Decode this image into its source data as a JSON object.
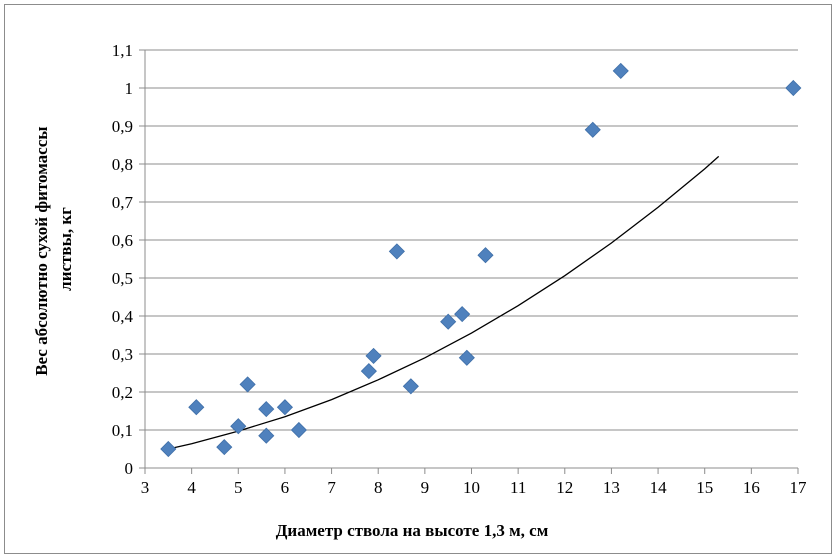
{
  "chart_data": {
    "type": "scatter",
    "xlabel": "Диаметр ствола на высоте 1,3 м, см",
    "ylabel_lines": [
      "Вес абсолютно сухой фитомассы",
      "листвы, кг"
    ],
    "xlim": [
      3,
      17
    ],
    "ylim": [
      0,
      1.1
    ],
    "x_ticks": [
      3,
      4,
      5,
      6,
      7,
      8,
      9,
      10,
      11,
      12,
      13,
      14,
      15,
      16,
      17
    ],
    "x_tick_labels": [
      "3",
      "4",
      "5",
      "6",
      "7",
      "8",
      "9",
      "10",
      "11",
      "12",
      "13",
      "14",
      "15",
      "16",
      "17"
    ],
    "y_ticks": [
      0,
      0.1,
      0.2,
      0.3,
      0.4,
      0.5,
      0.6,
      0.7,
      0.8,
      0.9,
      1,
      1.1
    ],
    "y_tick_labels": [
      "0",
      "0,1",
      "0,2",
      "0,3",
      "0,4",
      "0,5",
      "0,6",
      "0,7",
      "0,8",
      "0,9",
      "1",
      "1,1"
    ],
    "grid": "horizontal",
    "marker_color": "#4f81bd",
    "points": [
      {
        "x": 3.5,
        "y": 0.05
      },
      {
        "x": 4.1,
        "y": 0.16
      },
      {
        "x": 4.7,
        "y": 0.055
      },
      {
        "x": 5.0,
        "y": 0.11
      },
      {
        "x": 5.2,
        "y": 0.22
      },
      {
        "x": 5.6,
        "y": 0.155
      },
      {
        "x": 5.6,
        "y": 0.085
      },
      {
        "x": 6.0,
        "y": 0.16
      },
      {
        "x": 6.3,
        "y": 0.1
      },
      {
        "x": 7.8,
        "y": 0.255
      },
      {
        "x": 7.9,
        "y": 0.295
      },
      {
        "x": 8.4,
        "y": 0.57
      },
      {
        "x": 8.7,
        "y": 0.215
      },
      {
        "x": 9.5,
        "y": 0.385
      },
      {
        "x": 9.8,
        "y": 0.405
      },
      {
        "x": 9.9,
        "y": 0.29
      },
      {
        "x": 10.3,
        "y": 0.56
      },
      {
        "x": 12.6,
        "y": 0.89
      },
      {
        "x": 13.2,
        "y": 1.045
      },
      {
        "x": 16.9,
        "y": 1.0
      }
    ],
    "trendline": {
      "type": "power",
      "color": "#000000",
      "x": [
        3.5,
        4,
        5,
        6,
        7,
        8,
        9,
        10,
        11,
        12,
        13,
        14,
        15,
        15.3
      ],
      "y": [
        0.05,
        0.064,
        0.097,
        0.135,
        0.18,
        0.232,
        0.29,
        0.355,
        0.427,
        0.506,
        0.592,
        0.686,
        0.787,
        0.82
      ]
    }
  }
}
